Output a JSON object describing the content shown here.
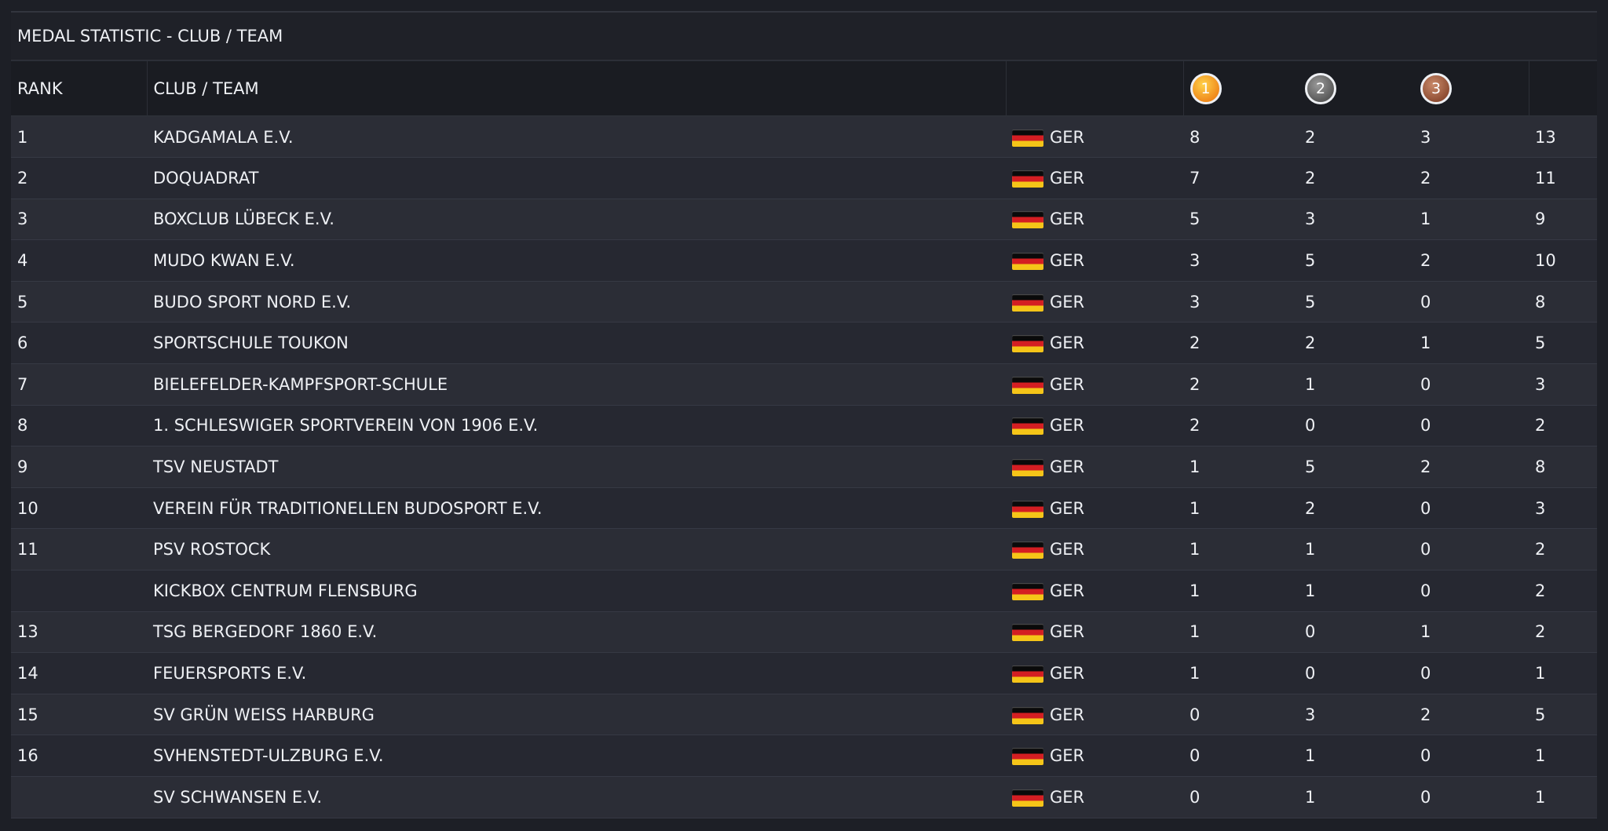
{
  "title": "MEDAL STATISTIC - CLUB / TEAM",
  "columns": {
    "rank": "RANK",
    "club": "CLUB / TEAM",
    "gold": "1",
    "silver": "2",
    "bronze": "3"
  },
  "colors": {
    "gold": "#f5a623",
    "silver": "#7a7a7a",
    "bronze": "#a8624a",
    "background": "#1d1f26"
  },
  "rows": [
    {
      "rank": "1",
      "club": "KADGAMALA E.V.",
      "nation": "GER",
      "gold": "8",
      "silver": "2",
      "bronze": "3",
      "total": "13"
    },
    {
      "rank": "2",
      "club": "DOQUADRAT",
      "nation": "GER",
      "gold": "7",
      "silver": "2",
      "bronze": "2",
      "total": "11"
    },
    {
      "rank": "3",
      "club": "BOXCLUB LÜBECK E.V.",
      "nation": "GER",
      "gold": "5",
      "silver": "3",
      "bronze": "1",
      "total": "9"
    },
    {
      "rank": "4",
      "club": "MUDO KWAN E.V.",
      "nation": "GER",
      "gold": "3",
      "silver": "5",
      "bronze": "2",
      "total": "10"
    },
    {
      "rank": "5",
      "club": "BUDO SPORT NORD E.V.",
      "nation": "GER",
      "gold": "3",
      "silver": "5",
      "bronze": "0",
      "total": "8"
    },
    {
      "rank": "6",
      "club": "SPORTSCHULE TOUKON",
      "nation": "GER",
      "gold": "2",
      "silver": "2",
      "bronze": "1",
      "total": "5"
    },
    {
      "rank": "7",
      "club": "BIELEFELDER-KAMPFSPORT-SCHULE",
      "nation": "GER",
      "gold": "2",
      "silver": "1",
      "bronze": "0",
      "total": "3"
    },
    {
      "rank": "8",
      "club": "1. SCHLESWIGER SPORTVEREIN VON 1906 E.V.",
      "nation": "GER",
      "gold": "2",
      "silver": "0",
      "bronze": "0",
      "total": "2"
    },
    {
      "rank": "9",
      "club": "TSV NEUSTADT",
      "nation": "GER",
      "gold": "1",
      "silver": "5",
      "bronze": "2",
      "total": "8"
    },
    {
      "rank": "10",
      "club": "VEREIN FÜR TRADITIONELLEN BUDOSPORT E.V.",
      "nation": "GER",
      "gold": "1",
      "silver": "2",
      "bronze": "0",
      "total": "3"
    },
    {
      "rank": "11",
      "club": "PSV ROSTOCK",
      "nation": "GER",
      "gold": "1",
      "silver": "1",
      "bronze": "0",
      "total": "2"
    },
    {
      "rank": "",
      "club": "KICKBOX CENTRUM FLENSBURG",
      "nation": "GER",
      "gold": "1",
      "silver": "1",
      "bronze": "0",
      "total": "2"
    },
    {
      "rank": "13",
      "club": "TSG BERGEDORF 1860 E.V.",
      "nation": "GER",
      "gold": "1",
      "silver": "0",
      "bronze": "1",
      "total": "2"
    },
    {
      "rank": "14",
      "club": "FEUERSPORTS E.V.",
      "nation": "GER",
      "gold": "1",
      "silver": "0",
      "bronze": "0",
      "total": "1"
    },
    {
      "rank": "15",
      "club": "SV GRÜN WEISS HARBURG",
      "nation": "GER",
      "gold": "0",
      "silver": "3",
      "bronze": "2",
      "total": "5"
    },
    {
      "rank": "16",
      "club": "SVHENSTEDT-ULZBURG E.V.",
      "nation": "GER",
      "gold": "0",
      "silver": "1",
      "bronze": "0",
      "total": "1"
    },
    {
      "rank": "",
      "club": "SV SCHWANSEN E.V.",
      "nation": "GER",
      "gold": "0",
      "silver": "1",
      "bronze": "0",
      "total": "1"
    }
  ]
}
